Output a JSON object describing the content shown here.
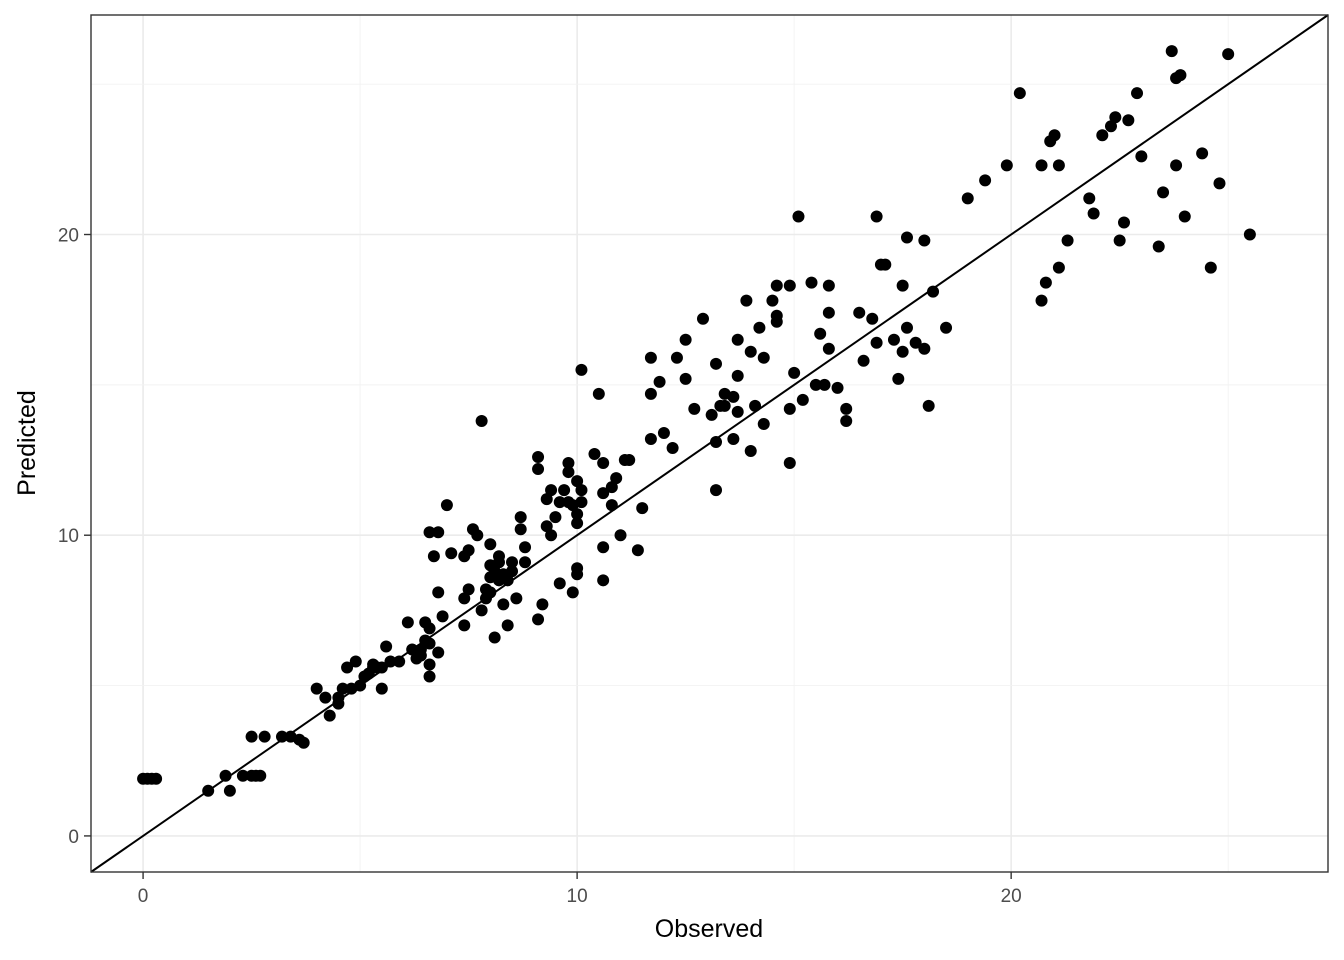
{
  "chart_data": {
    "type": "scatter",
    "xlabel": "Observed",
    "ylabel": "Predicted",
    "xlim": [
      -1.2,
      27.3
    ],
    "ylim": [
      -1.2,
      27.3
    ],
    "x_ticks": [
      0,
      10,
      20
    ],
    "y_ticks": [
      0,
      10,
      20
    ],
    "x_tick_labels": [
      "0",
      "10",
      "20"
    ],
    "y_tick_labels": [
      "0",
      "10",
      "20"
    ],
    "grid": true,
    "reference_line": {
      "slope": 1,
      "intercept": 0
    },
    "points": [
      [
        0.0,
        1.9
      ],
      [
        0.1,
        1.9
      ],
      [
        0.2,
        1.9
      ],
      [
        0.3,
        1.9
      ],
      [
        1.5,
        1.5
      ],
      [
        1.9,
        2.0
      ],
      [
        2.0,
        1.5
      ],
      [
        2.3,
        2.0
      ],
      [
        2.5,
        2.0
      ],
      [
        2.6,
        2.0
      ],
      [
        2.7,
        2.0
      ],
      [
        2.5,
        3.3
      ],
      [
        2.8,
        3.3
      ],
      [
        3.2,
        3.3
      ],
      [
        3.4,
        3.3
      ],
      [
        3.6,
        3.2
      ],
      [
        3.7,
        3.1
      ],
      [
        4.0,
        4.9
      ],
      [
        4.2,
        4.6
      ],
      [
        4.3,
        4.0
      ],
      [
        4.5,
        4.6
      ],
      [
        4.5,
        4.4
      ],
      [
        4.6,
        4.9
      ],
      [
        4.7,
        5.6
      ],
      [
        4.8,
        4.9
      ],
      [
        4.9,
        5.8
      ],
      [
        5.0,
        5.0
      ],
      [
        5.1,
        5.3
      ],
      [
        5.2,
        5.4
      ],
      [
        5.3,
        5.6
      ],
      [
        5.5,
        5.6
      ],
      [
        5.3,
        5.7
      ],
      [
        5.4,
        5.6
      ],
      [
        5.5,
        4.9
      ],
      [
        5.7,
        5.8
      ],
      [
        5.6,
        6.3
      ],
      [
        5.9,
        5.8
      ],
      [
        6.1,
        7.1
      ],
      [
        6.2,
        6.2
      ],
      [
        6.3,
        5.9
      ],
      [
        6.4,
        6.0
      ],
      [
        6.4,
        6.2
      ],
      [
        6.5,
        6.5
      ],
      [
        6.5,
        7.1
      ],
      [
        6.6,
        6.9
      ],
      [
        6.6,
        6.4
      ],
      [
        6.6,
        5.3
      ],
      [
        6.6,
        5.7
      ],
      [
        6.8,
        8.1
      ],
      [
        6.8,
        6.1
      ],
      [
        6.7,
        9.3
      ],
      [
        6.8,
        10.1
      ],
      [
        6.6,
        10.1
      ],
      [
        6.9,
        7.3
      ],
      [
        7.0,
        11.0
      ],
      [
        7.1,
        9.4
      ],
      [
        7.4,
        7.0
      ],
      [
        7.4,
        7.9
      ],
      [
        7.5,
        8.2
      ],
      [
        7.4,
        9.3
      ],
      [
        7.5,
        9.5
      ],
      [
        7.6,
        10.2
      ],
      [
        7.7,
        10.0
      ],
      [
        7.8,
        13.8
      ],
      [
        7.8,
        7.5
      ],
      [
        7.9,
        7.9
      ],
      [
        7.9,
        8.2
      ],
      [
        8.0,
        8.6
      ],
      [
        8.0,
        9.0
      ],
      [
        8.0,
        8.1
      ],
      [
        8.0,
        9.7
      ],
      [
        8.1,
        6.6
      ],
      [
        8.1,
        8.8
      ],
      [
        8.2,
        9.3
      ],
      [
        8.2,
        9.1
      ],
      [
        8.2,
        8.5
      ],
      [
        8.3,
        8.7
      ],
      [
        8.3,
        7.7
      ],
      [
        8.4,
        8.5
      ],
      [
        8.4,
        7.0
      ],
      [
        8.5,
        9.1
      ],
      [
        8.5,
        8.8
      ],
      [
        8.6,
        7.9
      ],
      [
        8.7,
        10.2
      ],
      [
        8.7,
        10.6
      ],
      [
        8.8,
        9.6
      ],
      [
        8.8,
        9.1
      ],
      [
        9.1,
        7.2
      ],
      [
        9.1,
        12.2
      ],
      [
        9.1,
        12.6
      ],
      [
        9.2,
        7.7
      ],
      [
        9.3,
        10.3
      ],
      [
        9.3,
        11.2
      ],
      [
        9.4,
        11.5
      ],
      [
        9.4,
        10.0
      ],
      [
        9.5,
        10.6
      ],
      [
        9.6,
        11.1
      ],
      [
        9.6,
        8.4
      ],
      [
        9.7,
        11.5
      ],
      [
        9.8,
        11.1
      ],
      [
        9.8,
        12.1
      ],
      [
        9.8,
        12.4
      ],
      [
        9.9,
        11.0
      ],
      [
        9.9,
        8.1
      ],
      [
        10.0,
        8.7
      ],
      [
        10.0,
        8.9
      ],
      [
        10.0,
        11.8
      ],
      [
        10.0,
        10.4
      ],
      [
        10.0,
        10.7
      ],
      [
        10.1,
        11.1
      ],
      [
        10.1,
        11.5
      ],
      [
        10.1,
        15.5
      ],
      [
        10.4,
        12.7
      ],
      [
        10.5,
        14.7
      ],
      [
        10.6,
        11.4
      ],
      [
        10.6,
        8.5
      ],
      [
        10.6,
        9.6
      ],
      [
        10.6,
        12.4
      ],
      [
        10.8,
        11.6
      ],
      [
        10.8,
        11.0
      ],
      [
        10.9,
        11.9
      ],
      [
        11.0,
        10.0
      ],
      [
        11.1,
        12.5
      ],
      [
        11.2,
        12.5
      ],
      [
        11.4,
        9.5
      ],
      [
        11.5,
        10.9
      ],
      [
        11.7,
        15.9
      ],
      [
        11.7,
        14.7
      ],
      [
        11.7,
        13.2
      ],
      [
        11.9,
        15.1
      ],
      [
        12.0,
        13.4
      ],
      [
        12.2,
        12.9
      ],
      [
        12.3,
        15.9
      ],
      [
        12.5,
        15.2
      ],
      [
        12.5,
        16.5
      ],
      [
        12.7,
        14.2
      ],
      [
        12.9,
        17.2
      ],
      [
        13.1,
        14.0
      ],
      [
        13.2,
        13.1
      ],
      [
        13.2,
        15.7
      ],
      [
        13.2,
        11.5
      ],
      [
        13.3,
        14.3
      ],
      [
        13.4,
        14.7
      ],
      [
        13.4,
        14.3
      ],
      [
        13.6,
        14.6
      ],
      [
        13.6,
        13.2
      ],
      [
        13.7,
        14.1
      ],
      [
        13.7,
        15.3
      ],
      [
        13.7,
        16.5
      ],
      [
        13.9,
        17.8
      ],
      [
        14.0,
        16.1
      ],
      [
        14.0,
        12.8
      ],
      [
        14.1,
        14.3
      ],
      [
        14.2,
        16.9
      ],
      [
        14.3,
        15.9
      ],
      [
        14.3,
        13.7
      ],
      [
        14.5,
        17.8
      ],
      [
        14.6,
        17.3
      ],
      [
        14.6,
        17.1
      ],
      [
        14.6,
        18.3
      ],
      [
        14.9,
        18.3
      ],
      [
        14.9,
        12.4
      ],
      [
        14.9,
        14.2
      ],
      [
        15.0,
        15.4
      ],
      [
        15.1,
        20.6
      ],
      [
        15.2,
        14.5
      ],
      [
        15.4,
        18.4
      ],
      [
        15.5,
        15.0
      ],
      [
        15.6,
        16.7
      ],
      [
        15.7,
        15.0
      ],
      [
        15.8,
        18.3
      ],
      [
        15.8,
        16.2
      ],
      [
        15.8,
        17.4
      ],
      [
        16.0,
        14.9
      ],
      [
        16.2,
        13.8
      ],
      [
        16.2,
        14.2
      ],
      [
        16.5,
        17.4
      ],
      [
        16.6,
        15.8
      ],
      [
        16.8,
        17.2
      ],
      [
        16.9,
        20.6
      ],
      [
        16.9,
        16.4
      ],
      [
        17.0,
        19.0
      ],
      [
        17.1,
        19.0
      ],
      [
        17.3,
        16.5
      ],
      [
        17.4,
        15.2
      ],
      [
        17.5,
        16.1
      ],
      [
        17.5,
        18.3
      ],
      [
        17.6,
        16.9
      ],
      [
        17.6,
        19.9
      ],
      [
        17.8,
        16.4
      ],
      [
        18.0,
        16.2
      ],
      [
        18.0,
        19.8
      ],
      [
        18.1,
        14.3
      ],
      [
        18.2,
        18.1
      ],
      [
        18.5,
        16.9
      ],
      [
        19.0,
        21.2
      ],
      [
        19.4,
        21.8
      ],
      [
        19.9,
        22.3
      ],
      [
        20.2,
        24.7
      ],
      [
        20.7,
        17.8
      ],
      [
        20.7,
        22.3
      ],
      [
        20.8,
        18.4
      ],
      [
        20.9,
        23.1
      ],
      [
        21.0,
        23.3
      ],
      [
        21.1,
        22.3
      ],
      [
        21.1,
        18.9
      ],
      [
        21.3,
        19.8
      ],
      [
        21.8,
        21.2
      ],
      [
        21.9,
        20.7
      ],
      [
        22.1,
        23.3
      ],
      [
        22.3,
        23.6
      ],
      [
        22.4,
        23.9
      ],
      [
        22.5,
        19.8
      ],
      [
        22.6,
        20.4
      ],
      [
        22.7,
        23.8
      ],
      [
        22.9,
        24.7
      ],
      [
        23.0,
        22.6
      ],
      [
        23.4,
        19.6
      ],
      [
        23.5,
        21.4
      ],
      [
        23.7,
        26.1
      ],
      [
        23.8,
        22.3
      ],
      [
        23.8,
        25.2
      ],
      [
        23.9,
        25.3
      ],
      [
        24.0,
        20.6
      ],
      [
        24.4,
        22.7
      ],
      [
        24.6,
        18.9
      ],
      [
        24.8,
        21.7
      ],
      [
        25.0,
        26.0
      ],
      [
        25.5,
        20.0
      ]
    ]
  }
}
